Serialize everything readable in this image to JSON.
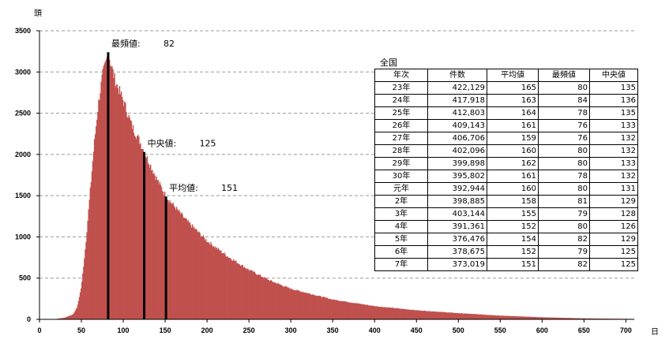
{
  "chart_data": {
    "type": "bar",
    "title": "",
    "ylabel": "頭",
    "xlabel": "日",
    "ylim": [
      0,
      3500
    ],
    "xlim": [
      0,
      710
    ],
    "grid": "horizontal dashed",
    "y_ticks": [
      "0",
      "500",
      "1000",
      "1500",
      "2000",
      "2500",
      "3000",
      "3500"
    ],
    "x_ticks": [
      "0",
      "50",
      "100",
      "150",
      "200",
      "250",
      "300",
      "350",
      "400",
      "450",
      "500",
      "550",
      "600",
      "650",
      "700"
    ],
    "bar_color": "#c0504d",
    "marker_color": "#000000",
    "distribution_anchors": {
      "x": [
        0,
        20,
        30,
        40,
        45,
        50,
        55,
        60,
        65,
        70,
        75,
        80,
        82,
        85,
        90,
        100,
        110,
        120,
        125,
        130,
        140,
        151,
        160,
        175,
        200,
        225,
        250,
        275,
        300,
        350,
        400,
        450,
        500,
        550,
        600,
        650,
        710
      ],
      "y": [
        0,
        5,
        20,
        60,
        150,
        400,
        900,
        1500,
        2100,
        2600,
        2950,
        3150,
        3240,
        3100,
        2900,
        2650,
        2350,
        2150,
        2030,
        1920,
        1700,
        1490,
        1380,
        1200,
        950,
        760,
        600,
        470,
        370,
        240,
        160,
        110,
        75,
        45,
        25,
        12,
        5
      ]
    },
    "markers": [
      {
        "label": "最頻値:",
        "value": "82",
        "x": 82,
        "y": 3240
      },
      {
        "label": "中央値:",
        "value": "125",
        "x": 125,
        "y": 2030
      },
      {
        "label": "平均値:",
        "value": "151",
        "x": 151,
        "y": 1490
      }
    ]
  },
  "table": {
    "title": "全国",
    "headers": [
      "年次",
      "件数",
      "平均値",
      "最頻値",
      "中央値"
    ],
    "rows": [
      [
        "23年",
        "422,129",
        "165",
        "80",
        "135"
      ],
      [
        "24年",
        "417,918",
        "163",
        "84",
        "136"
      ],
      [
        "25年",
        "412,803",
        "164",
        "78",
        "135"
      ],
      [
        "26年",
        "409,143",
        "161",
        "76",
        "133"
      ],
      [
        "27年",
        "406,706",
        "159",
        "76",
        "132"
      ],
      [
        "28年",
        "402,096",
        "160",
        "80",
        "132"
      ],
      [
        "29年",
        "399,898",
        "162",
        "80",
        "133"
      ],
      [
        "30年",
        "395,802",
        "161",
        "78",
        "132"
      ],
      [
        "元年",
        "392,944",
        "160",
        "80",
        "131"
      ],
      [
        "2年",
        "398,885",
        "158",
        "81",
        "129"
      ],
      [
        "3年",
        "403,144",
        "155",
        "79",
        "128"
      ],
      [
        "4年",
        "391,361",
        "152",
        "80",
        "126"
      ],
      [
        "5年",
        "376,476",
        "154",
        "82",
        "129"
      ],
      [
        "6年",
        "378,675",
        "152",
        "79",
        "125"
      ],
      [
        "7年",
        "373,019",
        "151",
        "82",
        "125"
      ]
    ]
  }
}
